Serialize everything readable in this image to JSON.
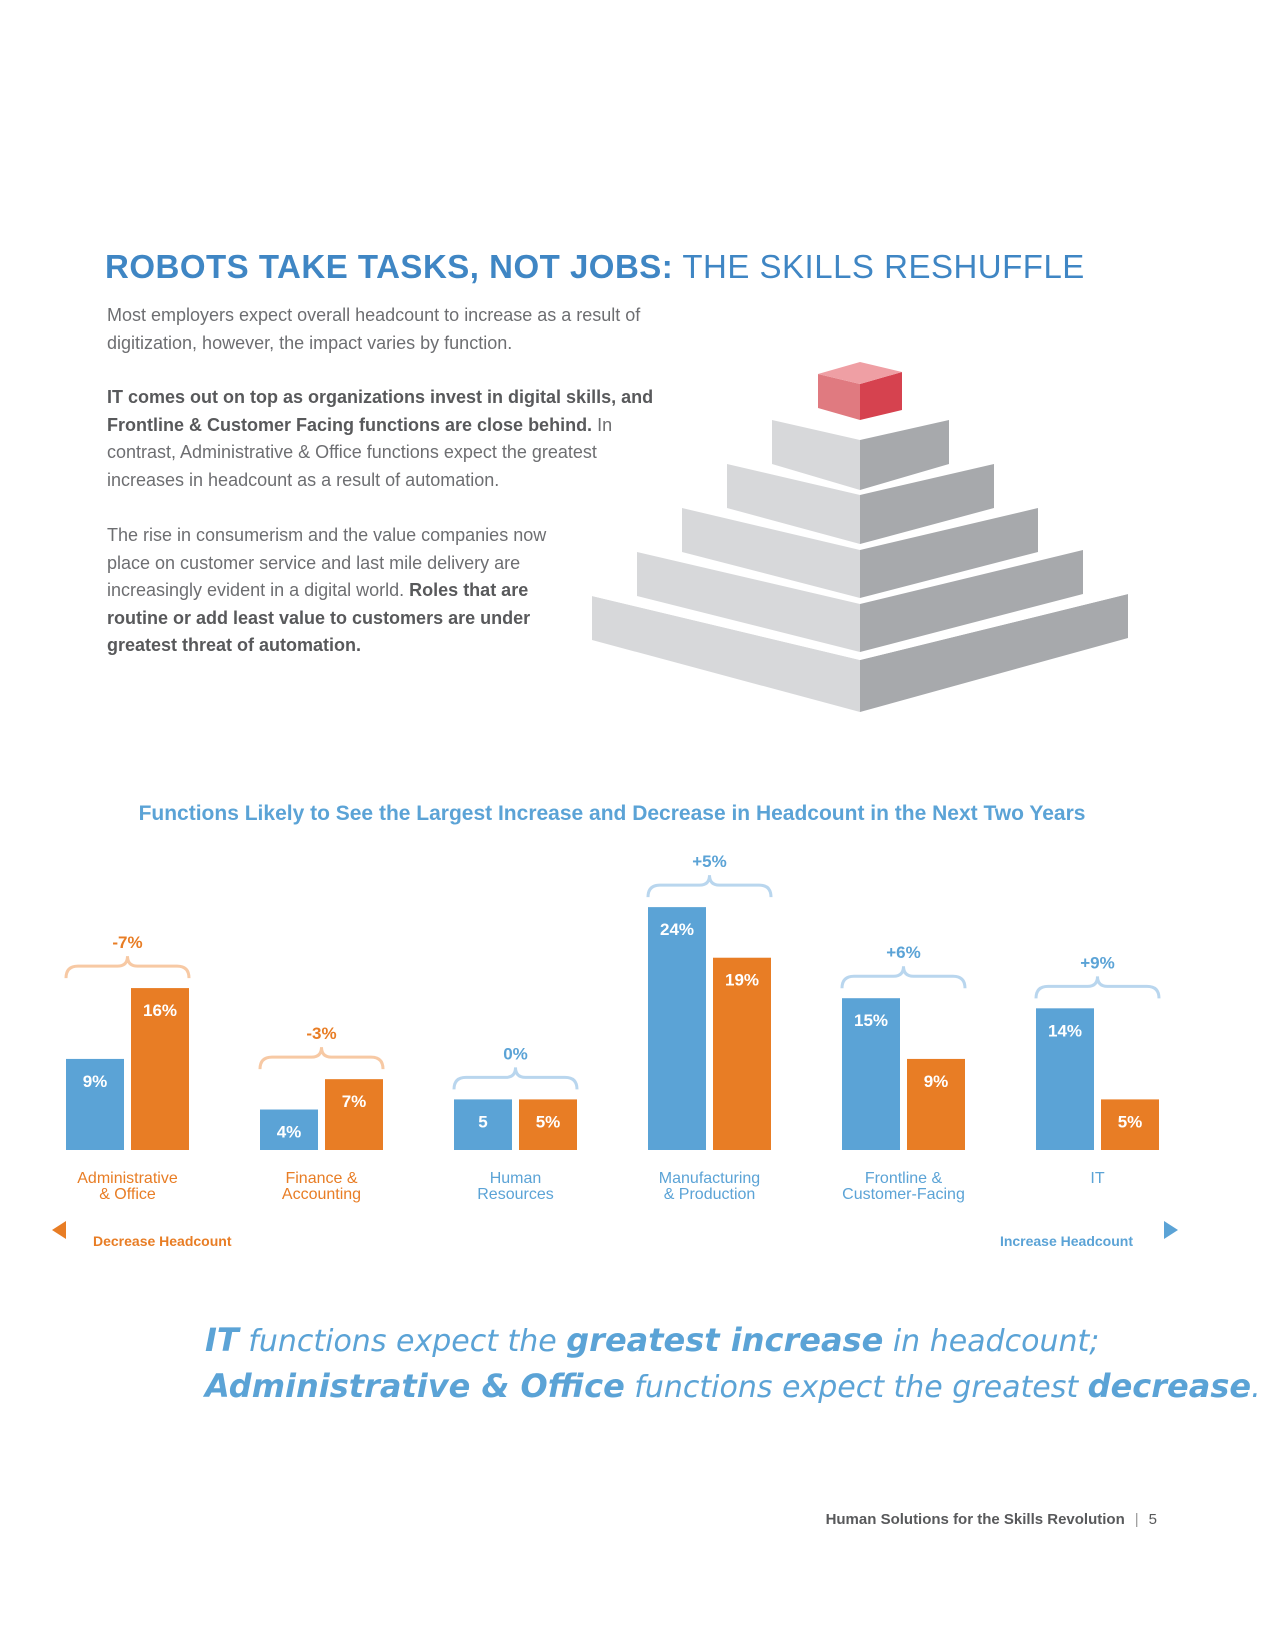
{
  "header": {
    "title_bold": "ROBOTS TAKE TASKS, NOT JOBS:",
    "title_rest": " THE SKILLS RESHUFFLE"
  },
  "paragraphs": [
    [
      "Most employers expect overall headcount to increase as a result of digitization, however, the impact varies by function."
    ],
    [
      "IT comes out on top as organizations invest in digital skills, and Frontline & Customer Facing functions are close behind.",
      " In contrast, Administrative & Office functions expect the greatest increases in headcount as a result of automation."
    ],
    [
      "The rise in consumerism and the value companies now place on customer service and last mile delivery are increasingly evident in a digital world.",
      " Roles that are routine or add least value to customers are under greatest threat of automation."
    ]
  ],
  "chart_data": {
    "type": "bar",
    "title": "Functions Likely to See the Largest Increase and Decrease in Headcount in the Next Two Years",
    "categories": [
      [
        "Administrative",
        "& Office"
      ],
      [
        "Finance &",
        "Accounting"
      ],
      [
        "Human",
        "Resources"
      ],
      [
        "Manufacturing",
        "& Production"
      ],
      [
        "Frontline &",
        "Customer-Facing"
      ],
      [
        "IT"
      ]
    ],
    "series": [
      {
        "color": "#5ba3d6",
        "values": [
          9,
          4,
          5,
          24,
          15,
          14
        ],
        "value_labels": [
          "9%",
          "4%",
          "5",
          "24%",
          "15%",
          "14%"
        ]
      },
      {
        "color": "#e87d25",
        "values": [
          16,
          7,
          5,
          19,
          9,
          5
        ],
        "value_labels": [
          "16%",
          "7%",
          "5%",
          "19%",
          "9%",
          "5%"
        ]
      }
    ],
    "differences": [
      -7,
      -3,
      0,
      5,
      6,
      9
    ],
    "difference_labels": [
      "-7%",
      "-3%",
      "0%",
      "+5%",
      "+6%",
      "+9%"
    ],
    "axis_left_label": "Decrease Headcount",
    "axis_right_label": "Increase Headcount"
  },
  "callout": [
    [
      "IT",
      " functions expect the ",
      "greatest increase",
      " in headcount;"
    ],
    [
      "Administrative & Office",
      " functions expect the greatest ",
      "decrease",
      "."
    ]
  ],
  "footer": {
    "text": "Human Solutions for the Skills Revolution",
    "page": "5"
  }
}
